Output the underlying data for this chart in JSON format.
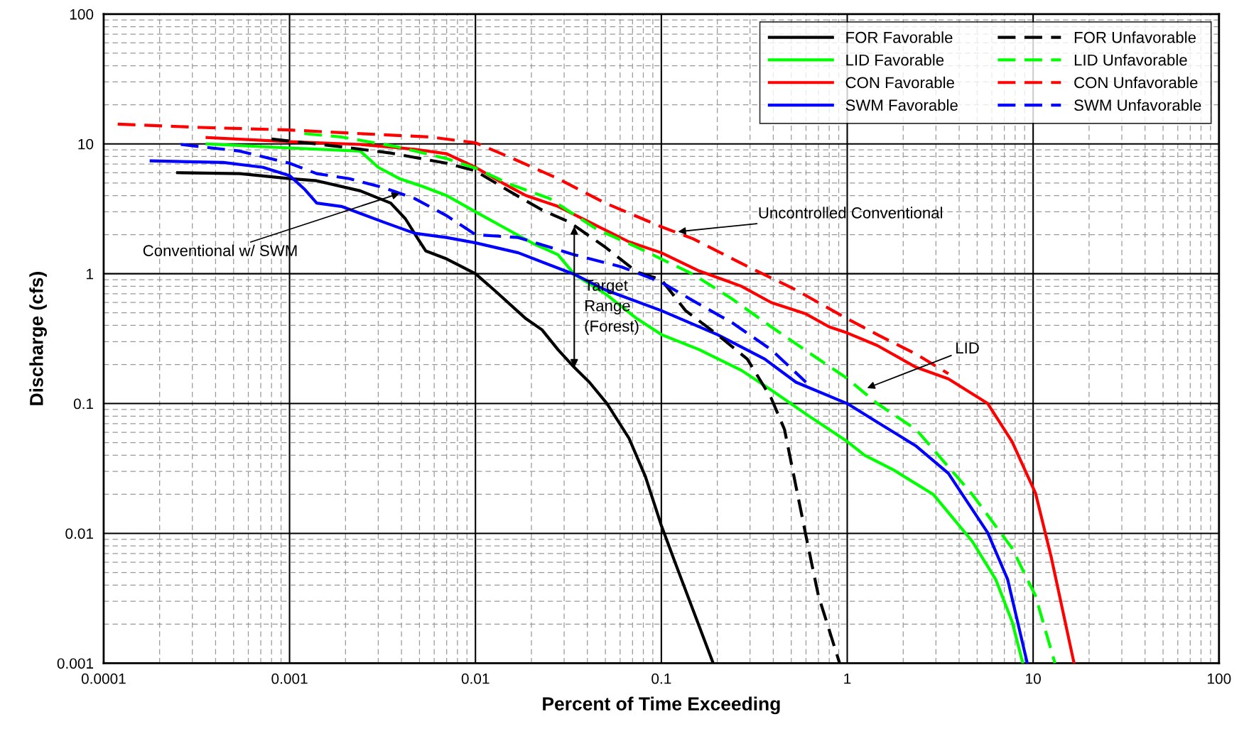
{
  "chart_data": {
    "type": "line",
    "xlabel": "Percent of Time Exceeding",
    "ylabel": "Discharge (cfs)",
    "log": "xy",
    "grid": true,
    "legend": "top right",
    "xlim": [
      0.0001,
      100
    ],
    "ylim": [
      0.001,
      100
    ],
    "xticks": [
      0.0001,
      0.001,
      0.01,
      0.1,
      1,
      10,
      100
    ],
    "yticks": [
      0.001,
      0.01,
      0.1,
      1,
      10,
      100
    ],
    "series": [
      {
        "name": "FOR Favorable",
        "color": "#000000",
        "line_style": "solid",
        "x": [
          0.00025,
          0.00054,
          0.001,
          0.0014,
          0.0024,
          0.0035,
          0.0042,
          0.0049,
          0.0054,
          0.007,
          0.01,
          0.0126,
          0.0187,
          0.0228,
          0.0278,
          0.034,
          0.041,
          0.051,
          0.067,
          0.082,
          0.1,
          0.12,
          0.19
        ],
        "values": [
          6.0,
          5.9,
          5.4,
          5.2,
          4.35,
          3.5,
          2.65,
          1.86,
          1.5,
          1.3,
          1.0,
          0.75,
          0.45,
          0.37,
          0.26,
          0.19,
          0.146,
          0.1,
          0.054,
          0.0275,
          0.0115,
          0.0057,
          0.001
        ]
      },
      {
        "name": "LID Favorable",
        "color": "#00ff00",
        "line_style": "solid",
        "x": [
          0.00036,
          0.001,
          0.0024,
          0.003,
          0.0039,
          0.0052,
          0.007,
          0.01,
          0.014,
          0.0206,
          0.0278,
          0.034,
          0.05,
          0.074,
          0.1,
          0.16,
          0.27,
          0.39,
          0.6,
          1.0,
          1.24,
          1.76,
          2.9,
          4.7,
          6.3,
          7.7,
          8.8
        ],
        "values": [
          10,
          9.3,
          8.8,
          6.6,
          5.4,
          4.7,
          4.0,
          3.0,
          2.3,
          1.7,
          1.4,
          0.99,
          0.7,
          0.45,
          0.34,
          0.26,
          0.18,
          0.127,
          0.083,
          0.051,
          0.04,
          0.031,
          0.02,
          0.0087,
          0.0044,
          0.0021,
          0.001
        ]
      },
      {
        "name": "CON Favorable",
        "color": "#ff0000",
        "line_style": "solid",
        "x": [
          0.00036,
          0.001,
          0.0024,
          0.0047,
          0.007,
          0.01,
          0.014,
          0.0187,
          0.0278,
          0.041,
          0.067,
          0.1,
          0.16,
          0.27,
          0.39,
          0.6,
          0.8,
          1.0,
          1.45,
          2.35,
          3.5,
          5.7,
          7.7,
          10.3,
          12.5,
          16.6
        ],
        "values": [
          11.2,
          10.4,
          9.9,
          9.1,
          8.4,
          6.6,
          5.0,
          4.0,
          3.3,
          2.5,
          1.76,
          1.45,
          1.05,
          0.8,
          0.6,
          0.49,
          0.39,
          0.35,
          0.28,
          0.19,
          0.155,
          0.1,
          0.051,
          0.0204,
          0.0066,
          0.001
        ]
      },
      {
        "name": "SWM Favorable",
        "color": "#0000ff",
        "line_style": "solid",
        "x": [
          0.00018,
          0.00044,
          0.00072,
          0.001,
          0.0012,
          0.0014,
          0.0019,
          0.0032,
          0.0047,
          0.007,
          0.01,
          0.017,
          0.034,
          0.05,
          0.1,
          0.2,
          0.36,
          0.53,
          1.0,
          1.45,
          2.35,
          3.5,
          5.7,
          7.3,
          9.3
        ],
        "values": [
          7.4,
          7.2,
          6.6,
          5.7,
          4.5,
          3.5,
          3.3,
          2.5,
          2.05,
          1.9,
          1.73,
          1.45,
          0.99,
          0.75,
          0.52,
          0.34,
          0.22,
          0.146,
          0.1,
          0.072,
          0.047,
          0.029,
          0.0101,
          0.0044,
          0.001
        ]
      },
      {
        "name": "FOR Unfavorable",
        "color": "#000000",
        "line_style": "dashed",
        "x": [
          0.0008,
          0.0019,
          0.0035,
          0.007,
          0.01,
          0.0153,
          0.0228,
          0.032,
          0.05,
          0.074,
          0.1,
          0.135,
          0.2,
          0.29,
          0.39,
          0.46,
          0.53,
          0.61,
          0.7,
          0.91
        ],
        "values": [
          10.9,
          9.5,
          8.5,
          7.1,
          6.2,
          4.3,
          3.1,
          2.5,
          1.6,
          1.03,
          0.9,
          0.52,
          0.34,
          0.22,
          0.11,
          0.063,
          0.023,
          0.0085,
          0.0033,
          0.001
        ]
      },
      {
        "name": "LID Unfavorable",
        "color": "#00ff00",
        "line_style": "dashed",
        "x": [
          0.0012,
          0.0019,
          0.0038,
          0.007,
          0.01,
          0.0153,
          0.025,
          0.045,
          0.074,
          0.1,
          0.148,
          0.24,
          0.39,
          0.64,
          1.0,
          1.45,
          2.35,
          4.7,
          7.7,
          10.3,
          13.1
        ],
        "values": [
          12,
          11.3,
          9.5,
          7.7,
          6.5,
          4.9,
          3.8,
          2.2,
          1.6,
          1.3,
          0.99,
          0.64,
          0.39,
          0.24,
          0.156,
          0.1,
          0.063,
          0.02,
          0.0077,
          0.0033,
          0.001
        ]
      },
      {
        "name": "CON Unfavorable",
        "color": "#ff0000",
        "line_style": "dashed",
        "x": [
          0.000119,
          0.00033,
          0.001,
          0.0024,
          0.0057,
          0.01,
          0.0153,
          0.0278,
          0.05,
          0.1,
          0.148,
          0.27,
          0.53,
          1.0,
          1.45,
          2.35,
          3.5
        ],
        "values": [
          14.2,
          13.4,
          12.8,
          12,
          11.3,
          10.2,
          7.9,
          5.4,
          3.5,
          2.3,
          1.86,
          1.2,
          0.75,
          0.45,
          0.34,
          0.24,
          0.17
        ]
      },
      {
        "name": "SWM Unfavorable",
        "color": "#0000ff",
        "line_style": "dashed",
        "x": [
          0.00026,
          0.00054,
          0.001,
          0.0014,
          0.0021,
          0.0032,
          0.0047,
          0.007,
          0.01,
          0.017,
          0.034,
          0.061,
          0.1,
          0.148,
          0.24,
          0.39,
          0.6
        ],
        "values": [
          9.9,
          8.8,
          7.1,
          5.9,
          5.4,
          4.6,
          3.8,
          2.8,
          2.0,
          1.9,
          1.4,
          1.13,
          0.86,
          0.62,
          0.42,
          0.26,
          0.146
        ]
      }
    ],
    "annotations": [
      {
        "text": "Conventional w/ SWM",
        "x": 0.004,
        "y": 4.2
      },
      {
        "text": "Uncontrolled Conventional",
        "x": 0.12,
        "y": 2.1
      },
      {
        "text": "Target\nRange\n(Forest)",
        "x": 0.034,
        "y": 0.19
      },
      {
        "text": "LID",
        "x": 1.25,
        "y": 0.13
      }
    ]
  }
}
